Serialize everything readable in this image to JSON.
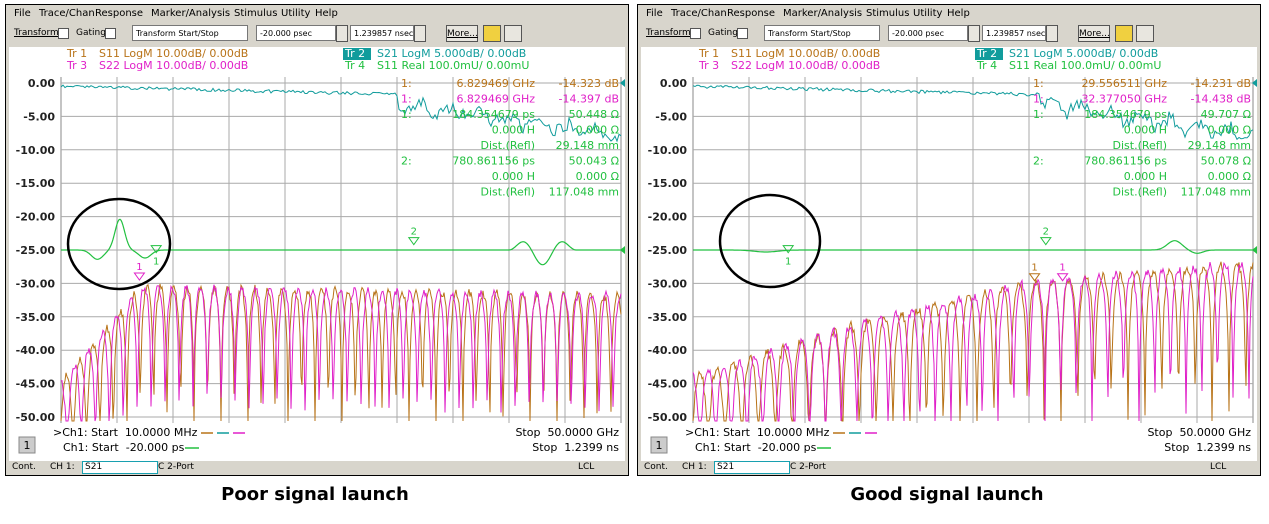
{
  "menu": [
    "File",
    "Trace/Chan",
    "Response",
    "Marker/Analysis",
    "Stimulus",
    "Utility",
    "Help"
  ],
  "toolbar": {
    "transform": "Transform",
    "gating": "Gating",
    "mode": "Transform Start/Stop",
    "start": "-20.000 psec",
    "stop": "1.239857 nsec",
    "more": "More..."
  },
  "trace_header": [
    {
      "tr": "Tr 1",
      "desc": "S11 LogM 10.00dB/ 0.00dB",
      "color": "#b87318"
    },
    {
      "tr": "Tr 3",
      "desc": "S22 LogM 10.00dB/ 0.00dB",
      "color": "#e020c8"
    },
    {
      "tr": "Tr 2",
      "desc": "S21 LogM 5.000dB/ 0.00dB",
      "color": "#119c9c"
    },
    {
      "tr": "Tr 4",
      "desc": "S11 Real 100.0mU/ 0.00mU",
      "color": "#22c040"
    }
  ],
  "yticks": [
    "0.00",
    "-5.00",
    "-10.00",
    "-15.00",
    "-20.00",
    "-25.00",
    "-30.00",
    "-35.00",
    "-40.00",
    "-45.00",
    "-50.00"
  ],
  "footer": {
    "start1": ">Ch1: Start  10.0000 MHz",
    "stop1": "Stop  50.0000 GHz",
    "start2": "Ch1: Start  -20.000 ps",
    "stop2": "Stop  1.2399 ns",
    "channel": "1"
  },
  "status": {
    "mode": "Cont.",
    "channel": "CH 1:",
    "param": "S21",
    "cal": "C 2-Port",
    "ref": "LCL"
  },
  "panels": [
    {
      "caption": "Poor signal launch",
      "markers": [
        {
          "id": "1:",
          "value": "6.829469 GHz",
          "result": "-14.323 dB",
          "color": "#b87318"
        },
        {
          "id": "1:",
          "value": "6.829469 GHz",
          "result": "-14.397 dB",
          "color": "#e020c8"
        },
        {
          "id": "1:",
          "value": "184.354679 ps",
          "result": "50.448 Ω",
          "color": "#22c040"
        },
        {
          "value": "0.000 H",
          "result": "0.000 Ω",
          "color": "#22c040"
        },
        {
          "value": "Dist.(Refl)",
          "result": "29.148 mm",
          "color": "#22c040"
        },
        {
          "id": "2:",
          "value": "780.861156 ps",
          "result": "50.043 Ω",
          "color": "#22c040"
        },
        {
          "value": "0.000 H",
          "result": "0.000 Ω",
          "color": "#22c040"
        },
        {
          "value": "Dist.(Refl)",
          "result": "117.048 mm",
          "color": "#22c040"
        }
      ],
      "plot_markers": [
        "1",
        "2",
        "1"
      ]
    },
    {
      "caption": "Good signal launch",
      "markers": [
        {
          "id": "1:",
          "value": "29.556511 GHz",
          "result": "-14.231 dB",
          "color": "#b87318"
        },
        {
          "id": "1:",
          "value": "32.377050 GHz",
          "result": "-14.438 dB",
          "color": "#e020c8"
        },
        {
          "id": "1:",
          "value": "184.354679 ps",
          "result": "49.707 Ω",
          "color": "#22c040"
        },
        {
          "value": "0.000 H",
          "result": "0.000 Ω",
          "color": "#22c040"
        },
        {
          "value": "Dist.(Refl)",
          "result": "29.148 mm",
          "color": "#22c040"
        },
        {
          "id": "2:",
          "value": "780.861156 ps",
          "result": "50.078 Ω",
          "color": "#22c040"
        },
        {
          "value": "0.000 H",
          "result": "0.000 Ω",
          "color": "#22c040"
        },
        {
          "value": "Dist.(Refl)",
          "result": "117.048 mm",
          "color": "#22c040"
        }
      ],
      "plot_markers": [
        "1",
        "2",
        "1",
        "1"
      ]
    }
  ]
}
